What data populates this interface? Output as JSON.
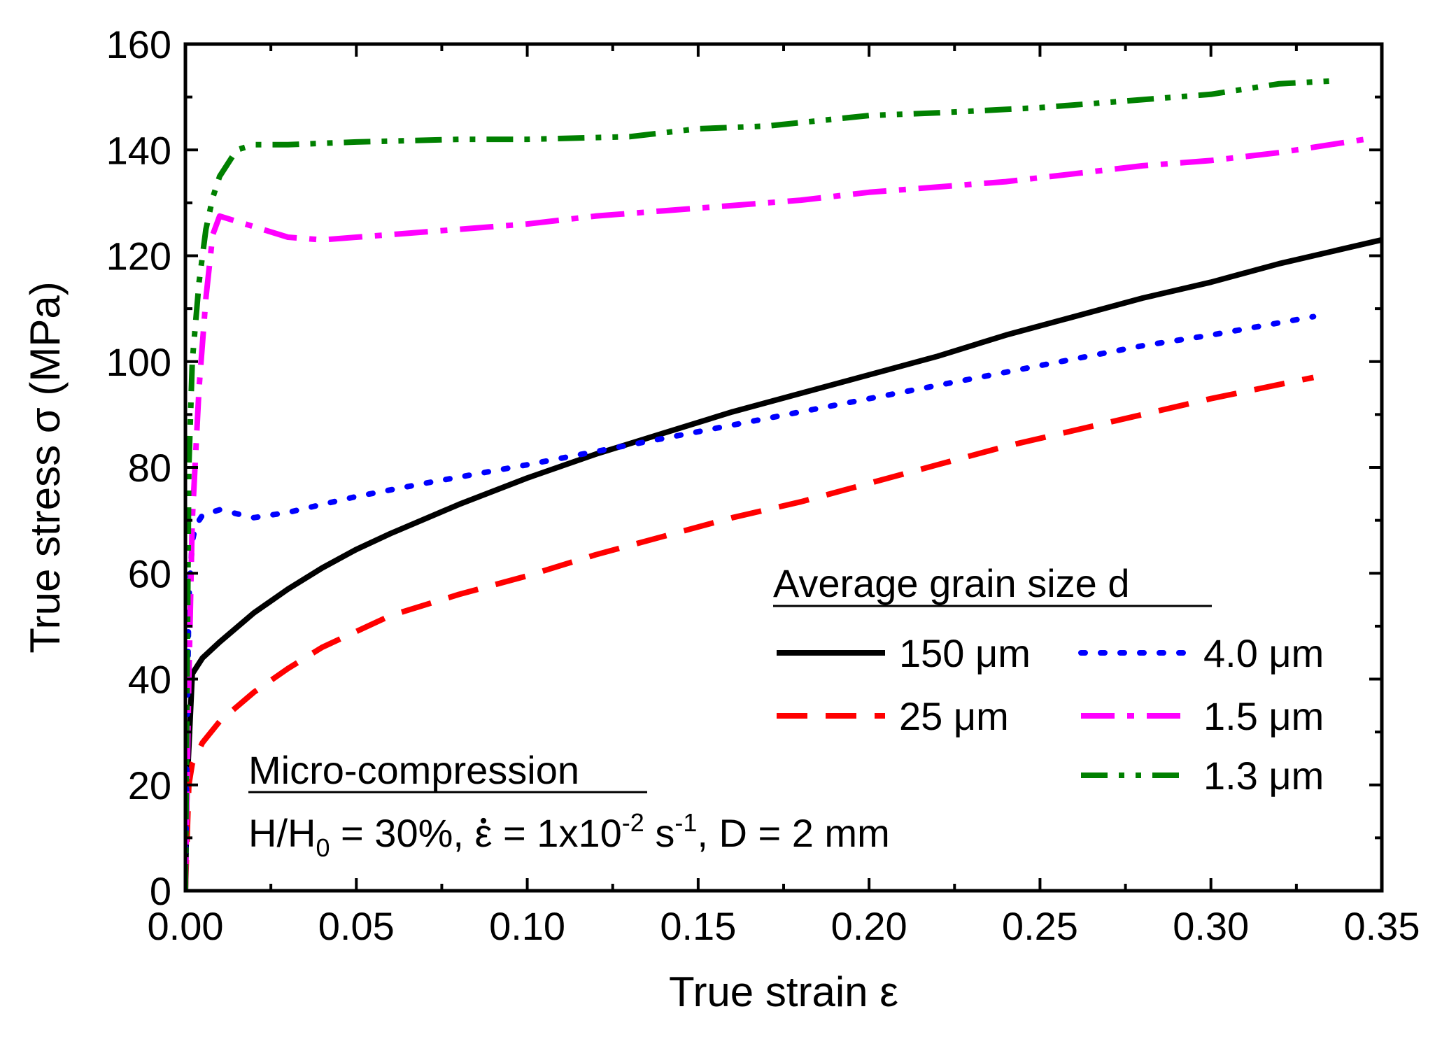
{
  "chart_data": {
    "type": "line",
    "title": "",
    "xlabel": "True strain ε",
    "ylabel": "True stress σ (MPa)",
    "xlim": [
      0,
      0.35
    ],
    "ylim": [
      0,
      160
    ],
    "xticks": [
      0,
      0.05,
      0.1,
      0.15,
      0.2,
      0.25,
      0.3,
      0.35
    ],
    "xtick_labels": [
      "0.00",
      "0.05",
      "0.10",
      "0.15",
      "0.20",
      "0.25",
      "0.30",
      "0.35"
    ],
    "yticks": [
      0,
      20,
      40,
      60,
      80,
      100,
      120,
      140,
      160
    ],
    "ytick_labels": [
      "0",
      "20",
      "40",
      "60",
      "80",
      "100",
      "120",
      "140",
      "160"
    ],
    "grid": false,
    "legend": {
      "title": "Average grain size d",
      "placement": "center-right"
    },
    "annotation": {
      "heading": "Micro-compression",
      "line_parts": {
        "h": "H/H",
        "h_sub": "0",
        "eq1": " = 30%, ",
        "rate_symbol": "ε",
        "rate_eq": " = 1x10",
        "exp1": "-2",
        "unit": " s",
        "exp2": "-1",
        "tail": ", D = 2 mm"
      }
    },
    "series": [
      {
        "name": "150 μm",
        "color": "#000000",
        "dash": "solid",
        "x": [
          0,
          0.0005,
          0.002,
          0.005,
          0.01,
          0.02,
          0.03,
          0.04,
          0.05,
          0.06,
          0.08,
          0.1,
          0.12,
          0.14,
          0.16,
          0.18,
          0.2,
          0.22,
          0.24,
          0.26,
          0.28,
          0.3,
          0.32,
          0.35
        ],
        "y": [
          0,
          20,
          41,
          44,
          47,
          52.5,
          57,
          61,
          64.5,
          67.5,
          73,
          78,
          82.5,
          86.5,
          90.5,
          94,
          97.5,
          101,
          105,
          108.5,
          112,
          115,
          118.5,
          123
        ]
      },
      {
        "name": "25 μm",
        "color": "#ff0000",
        "dash": "long-dash",
        "x": [
          0,
          0.0005,
          0.001,
          0.002,
          0.005,
          0.01,
          0.02,
          0.03,
          0.04,
          0.05,
          0.06,
          0.08,
          0.1,
          0.12,
          0.14,
          0.16,
          0.18,
          0.2,
          0.22,
          0.24,
          0.26,
          0.28,
          0.3,
          0.33
        ],
        "y": [
          0,
          10,
          20,
          24,
          28,
          32,
          37.5,
          42,
          46,
          49,
          52,
          56,
          59.5,
          63.5,
          67,
          70.5,
          73.5,
          77,
          80.5,
          84,
          87,
          90,
          93,
          97
        ]
      },
      {
        "name": "4.0 μm",
        "color": "#0000ff",
        "dash": "dot",
        "x": [
          0,
          0.0005,
          0.001,
          0.002,
          0.003,
          0.005,
          0.01,
          0.02,
          0.03,
          0.04,
          0.05,
          0.07,
          0.1,
          0.12,
          0.14,
          0.16,
          0.18,
          0.2,
          0.22,
          0.24,
          0.26,
          0.28,
          0.3,
          0.33
        ],
        "y": [
          0,
          30,
          55,
          66,
          69,
          71,
          72,
          70.5,
          71.5,
          73,
          74.5,
          77,
          80.5,
          83,
          85.5,
          88,
          90.5,
          93,
          95.5,
          98,
          100.5,
          103,
          105,
          108.5
        ]
      },
      {
        "name": "1.5 μm",
        "color": "#ff00ff",
        "dash": "dash-dot",
        "x": [
          0,
          0.001,
          0.002,
          0.004,
          0.006,
          0.008,
          0.01,
          0.015,
          0.02,
          0.03,
          0.04,
          0.05,
          0.06,
          0.08,
          0.1,
          0.12,
          0.14,
          0.16,
          0.18,
          0.2,
          0.22,
          0.24,
          0.26,
          0.28,
          0.3,
          0.32,
          0.345
        ],
        "y": [
          0,
          40,
          70,
          95,
          112,
          124,
          127.5,
          126.5,
          125.5,
          123.5,
          123,
          123.5,
          124,
          125,
          126,
          127.5,
          128.5,
          129.5,
          130.5,
          132,
          133,
          134,
          135.5,
          137,
          138,
          139.5,
          142
        ]
      },
      {
        "name": "1.3 μm",
        "color": "#008000",
        "dash": "dash-dot-dot",
        "x": [
          0,
          0.0005,
          0.001,
          0.002,
          0.004,
          0.006,
          0.008,
          0.01,
          0.015,
          0.02,
          0.03,
          0.05,
          0.08,
          0.1,
          0.13,
          0.15,
          0.17,
          0.2,
          0.22,
          0.25,
          0.27,
          0.3,
          0.32,
          0.335
        ],
        "y": [
          0,
          40,
          80,
          100,
          115,
          125,
          131,
          135,
          140,
          141,
          141,
          141.5,
          142,
          142,
          142.5,
          144,
          144.5,
          146.5,
          147,
          148,
          149,
          150.5,
          152.5,
          153
        ]
      }
    ]
  }
}
